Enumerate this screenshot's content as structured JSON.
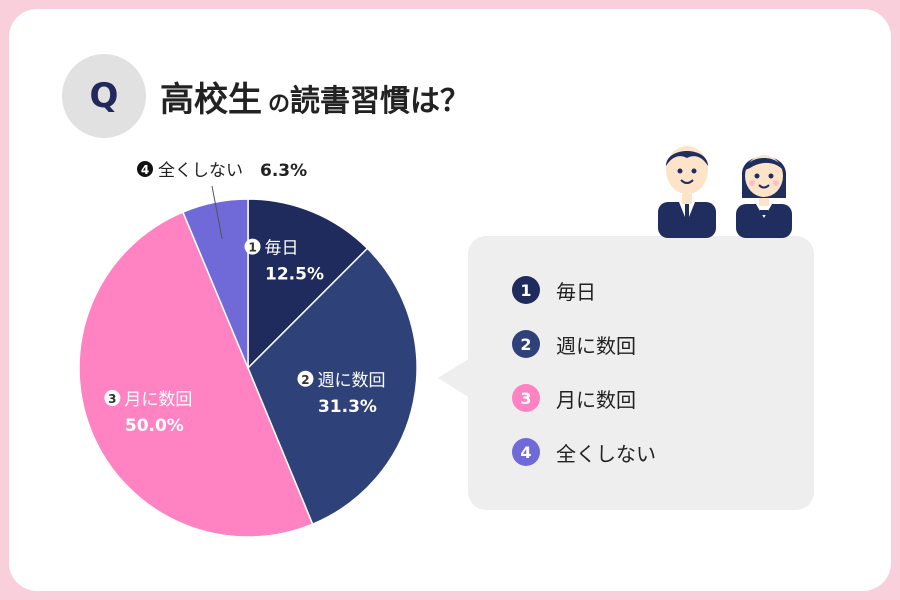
{
  "header": {
    "badge": "Q",
    "title_part1": "高校生",
    "title_part2": "の",
    "title_part3": "読書習慣は？"
  },
  "colors": {
    "frame": "#f9cfdc",
    "callout_bg": "#eeeeee"
  },
  "chart_data": {
    "type": "pie",
    "title": "",
    "slices": [
      {
        "num": "1",
        "label": "毎日",
        "value": 12.5,
        "display": "12.5%",
        "color": "#1e2b5c"
      },
      {
        "num": "2",
        "label": "週に数回",
        "value": 31.3,
        "display": "31.3%",
        "color": "#2e4178"
      },
      {
        "num": "3",
        "label": "月に数回",
        "value": 50.0,
        "display": "50.0%",
        "color": "#ff82c2"
      },
      {
        "num": "4",
        "label": "全くしない",
        "value": 6.3,
        "display": "6.3%",
        "color": "#6f6ad8"
      }
    ]
  }
}
